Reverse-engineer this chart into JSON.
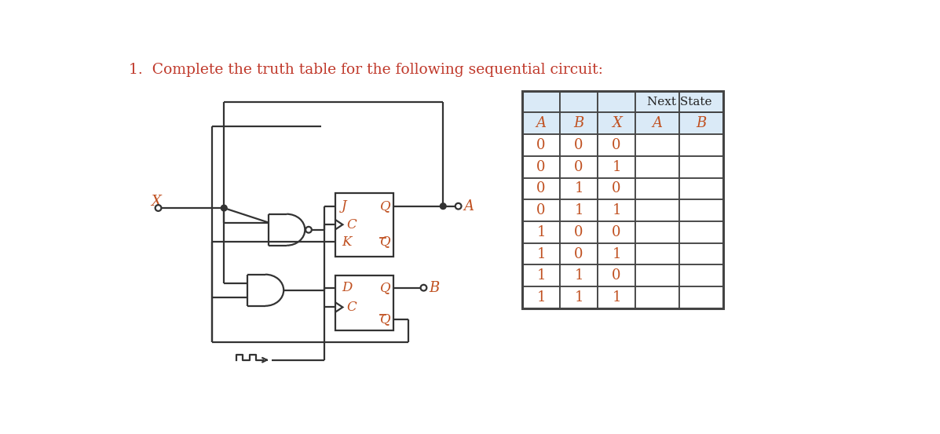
{
  "title": "1.  Complete the truth table for the following sequential circuit:",
  "title_color": "#c0392b",
  "title_fontsize": 13.5,
  "table_header_bg": "#daeaf7",
  "table_border_color": "#444444",
  "col_headers": [
    "A",
    "B",
    "X",
    "A",
    "B"
  ],
  "next_state_label": "Next State",
  "rows": [
    [
      "0",
      "0",
      "0",
      "",
      ""
    ],
    [
      "0",
      "0",
      "1",
      "",
      ""
    ],
    [
      "0",
      "1",
      "0",
      "",
      ""
    ],
    [
      "0",
      "1",
      "1",
      "",
      ""
    ],
    [
      "1",
      "0",
      "0",
      "",
      ""
    ],
    [
      "1",
      "0",
      "1",
      "",
      ""
    ],
    [
      "1",
      "1",
      "0",
      "",
      ""
    ],
    [
      "1",
      "1",
      "1",
      "",
      ""
    ]
  ],
  "data_color": "#c05020",
  "circuit_line_color": "#333333",
  "background_color": "#ffffff",
  "label_color": "#c05020"
}
